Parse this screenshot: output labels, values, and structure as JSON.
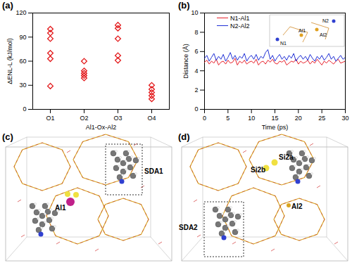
{
  "chart_data": [
    {
      "type": "scatter",
      "label": "(a)",
      "x_label": "Al1-Ox-Al2",
      "y_label": "ΔENL-L (kJ/mol)",
      "categories": [
        "O1",
        "O2",
        "O3",
        "O4"
      ],
      "values": [
        [
          100,
          95,
          88,
          70,
          63,
          29
        ],
        [
          60,
          48,
          45,
          42,
          39
        ],
        [
          105,
          101,
          88,
          67,
          61
        ],
        [
          30,
          25,
          21,
          17,
          13
        ]
      ],
      "color": "#e31a1c",
      "marker": "diamond",
      "ylim": [
        0,
        120
      ],
      "yticks": [
        0,
        30,
        60,
        90,
        120
      ]
    },
    {
      "type": "line",
      "label": "(b)",
      "x_label": "Time (ps)",
      "y_label": "Distance (Å)",
      "x": [
        0,
        0.5,
        1,
        1.5,
        2,
        2.5,
        3,
        3.5,
        4,
        4.5,
        5,
        5.5,
        6,
        6.5,
        7,
        7.5,
        8,
        8.5,
        9,
        9.5,
        10,
        10.5,
        11,
        11.5,
        12,
        12.5,
        13,
        13.5,
        14,
        14.5,
        15,
        15.5,
        16,
        16.5,
        17,
        17.5,
        18,
        18.5,
        19,
        19.5,
        20,
        20.5,
        21,
        21.5,
        22,
        22.5,
        23,
        23.5,
        24,
        24.5,
        25,
        25.5,
        26,
        26.5,
        27,
        27.5,
        28,
        28.5,
        29,
        29.5,
        30
      ],
      "series": [
        {
          "name": "N1-Al1",
          "color": "#e8202a",
          "values": [
            4.9,
            5.1,
            4.7,
            5.0,
            4.8,
            5.2,
            4.6,
            4.9,
            5.0,
            4.7,
            5.1,
            4.8,
            4.9,
            5.3,
            4.6,
            5.0,
            4.8,
            5.1,
            4.7,
            4.9,
            5.0,
            4.8,
            5.2,
            4.6,
            4.9,
            5.0,
            4.7,
            5.1,
            4.9,
            5.2,
            4.8,
            4.7,
            5.0,
            4.9,
            5.1,
            4.6,
            4.8,
            5.0,
            4.9,
            5.2,
            4.7,
            5.0,
            4.8,
            4.9,
            5.1,
            4.7,
            5.0,
            4.8,
            5.2,
            4.9,
            4.6,
            5.0,
            4.8,
            5.1,
            4.9,
            4.7,
            5.0,
            5.2,
            4.8,
            4.9,
            5.0
          ]
        },
        {
          "name": "N2-Al2",
          "color": "#1f2fd6",
          "values": [
            5.3,
            5.6,
            5.0,
            5.4,
            5.8,
            5.1,
            5.5,
            5.2,
            5.7,
            5.0,
            5.4,
            5.9,
            5.2,
            5.6,
            5.1,
            5.5,
            5.3,
            5.8,
            5.0,
            5.4,
            5.6,
            5.2,
            5.7,
            5.1,
            5.5,
            5.3,
            5.9,
            6.2,
            5.2,
            5.6,
            5.0,
            5.4,
            5.7,
            5.2,
            5.5,
            5.1,
            5.6,
            5.3,
            5.8,
            5.0,
            5.4,
            5.6,
            5.2,
            5.5,
            5.1,
            5.7,
            5.3,
            5.0,
            5.5,
            5.2,
            5.6,
            5.1,
            5.4,
            5.8,
            5.2,
            5.5,
            5.0,
            5.3,
            5.6,
            5.2,
            5.4
          ]
        }
      ],
      "legend": "top-left",
      "annotations": [
        "N1",
        "Al1",
        "Al2",
        "N2"
      ],
      "xlim": [
        0,
        30
      ],
      "xticks": [
        0,
        5,
        10,
        15,
        20,
        25,
        30
      ],
      "ylim": [
        0,
        10
      ],
      "yticks": [
        0,
        2,
        4,
        6,
        8,
        10
      ]
    }
  ],
  "panels": [
    {
      "label": "(c)",
      "annotations": [
        "SDA1",
        "Al1"
      ]
    },
    {
      "label": "(d)",
      "annotations": [
        "Si2b",
        "Si2a",
        "Al2",
        "SDA2"
      ]
    }
  ]
}
